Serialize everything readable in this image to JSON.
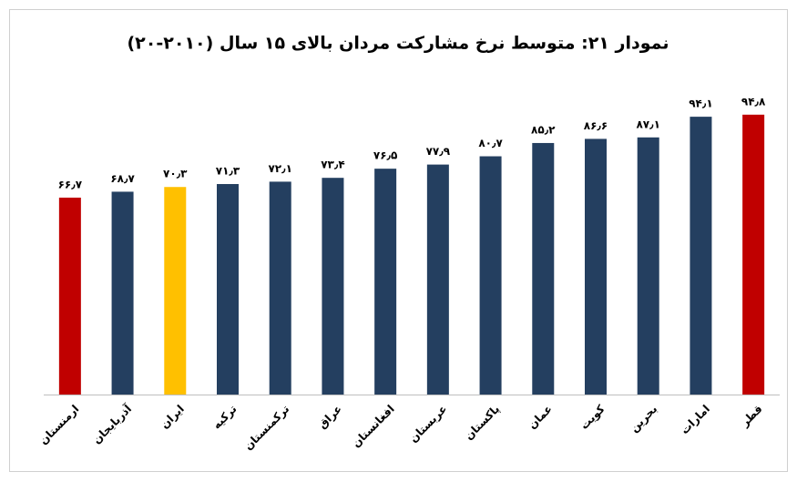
{
  "chart_data": {
    "type": "bar",
    "title": "نمودار ۲۱: متوسط نرخ مشارکت مردان بالای ۱۵ سال (۲۰۱۰-۲۰)",
    "categories": [
      "ارمنستان",
      "آذربایجان",
      "ایران",
      "ترکیه",
      "ترکمنستان",
      "عراق",
      "افغانستان",
      "عربستان",
      "پاکستان",
      "عمان",
      "کویت",
      "بحرین",
      "امارات",
      "قطر"
    ],
    "values": [
      66.7,
      68.7,
      70.3,
      71.3,
      72.1,
      73.4,
      76.5,
      77.9,
      80.7,
      85.2,
      86.6,
      87.1,
      94.1,
      94.8
    ],
    "value_labels": [
      "۶۶٫۷",
      "۶۸٫۷",
      "۷۰٫۳",
      "۷۱٫۳",
      "۷۲٫۱",
      "۷۳٫۴",
      "۷۶٫۵",
      "۷۷٫۹",
      "۸۰٫۷",
      "۸۵٫۲",
      "۸۶٫۶",
      "۸۷٫۱",
      "۹۴٫۱",
      "۹۴٫۸"
    ],
    "colors": [
      "#c00000",
      "#243f60",
      "#ffc000",
      "#243f60",
      "#243f60",
      "#243f60",
      "#243f60",
      "#243f60",
      "#243f60",
      "#243f60",
      "#243f60",
      "#243f60",
      "#243f60",
      "#c00000"
    ],
    "ylim": [
      0,
      100
    ]
  }
}
